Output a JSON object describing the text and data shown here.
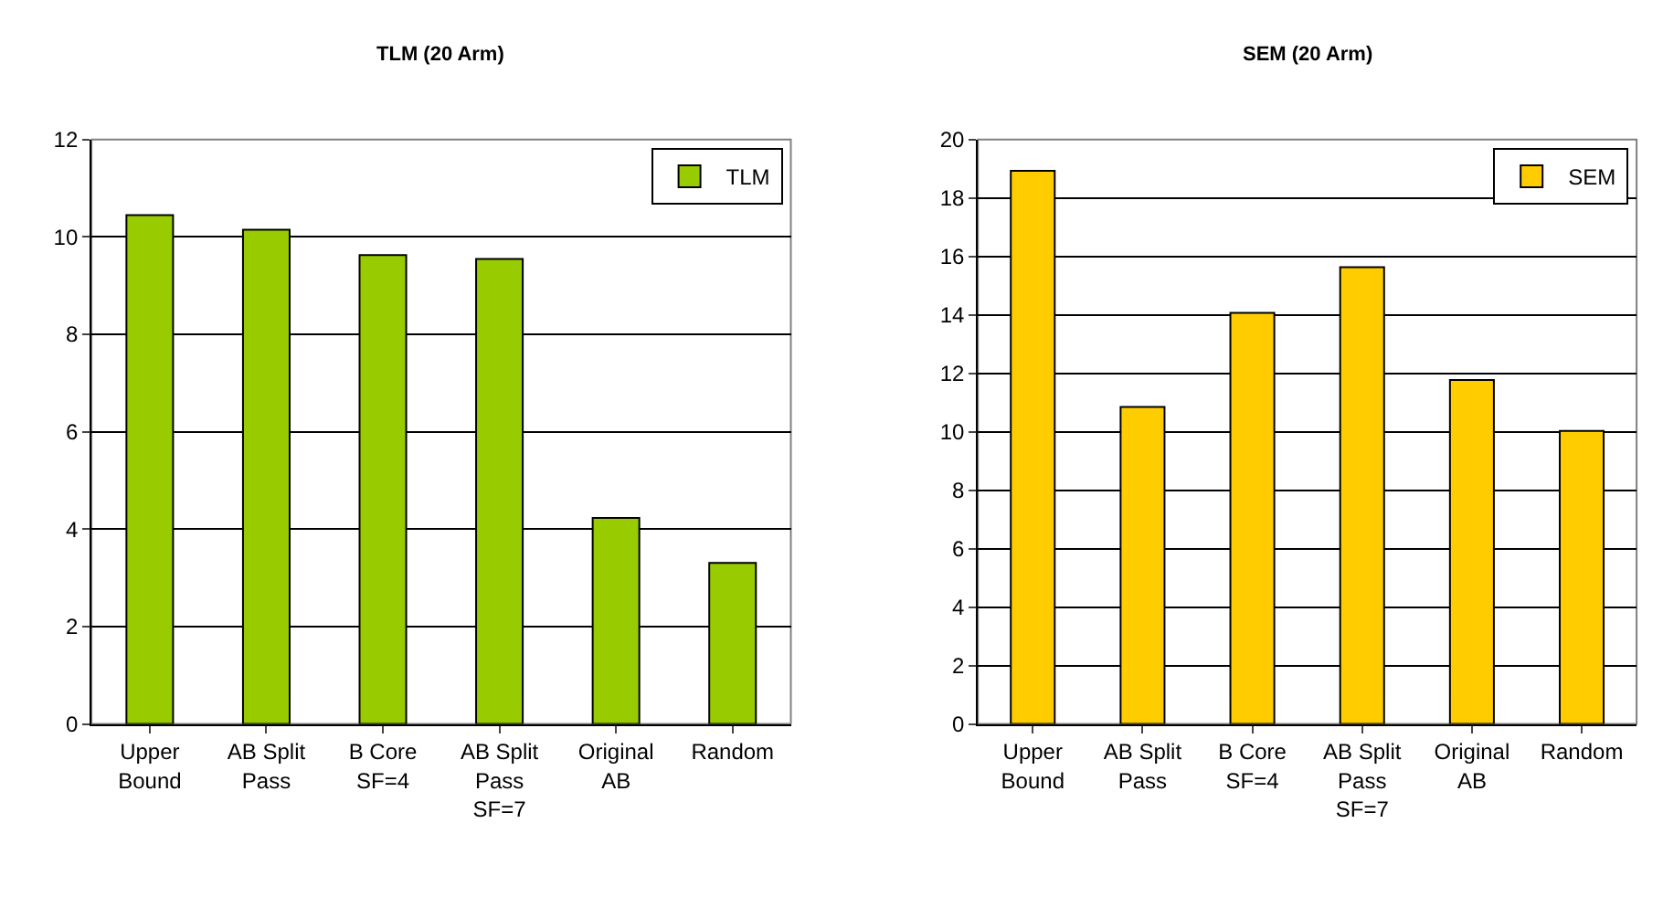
{
  "chart_data": [
    {
      "type": "bar",
      "title": "TLM (20 Arm)",
      "categories": [
        "Upper Bound",
        "AB Split Pass",
        "B Core SF=4",
        "AB Split Pass SF=7",
        "Original AB",
        "Random"
      ],
      "series": [
        {
          "name": "TLM",
          "color": "#99cc00",
          "values": [
            10.45,
            10.15,
            9.63,
            9.55,
            4.23,
            3.31
          ]
        }
      ],
      "ylim": [
        0,
        12
      ],
      "yticks": [
        0,
        2,
        4,
        6,
        8,
        10,
        12
      ],
      "grid": "y",
      "legend": "top right"
    },
    {
      "type": "bar",
      "title": "SEM (20 Arm)",
      "categories": [
        "Upper Bound",
        "AB Split Pass",
        "B Core SF=4",
        "AB Split Pass SF=7",
        "Original AB",
        "Random"
      ],
      "series": [
        {
          "name": "SEM",
          "color": "#ffcc00",
          "values": [
            18.93,
            10.85,
            14.07,
            15.63,
            11.77,
            10.03
          ]
        }
      ],
      "ylim": [
        0,
        20
      ],
      "yticks": [
        0,
        2,
        4,
        6,
        8,
        10,
        12,
        14,
        16,
        18,
        20
      ],
      "grid": "y",
      "legend": "top right"
    }
  ]
}
